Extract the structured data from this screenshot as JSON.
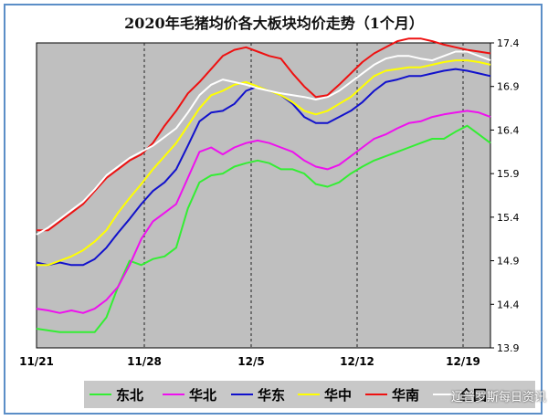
{
  "chart_data": {
    "type": "line",
    "title": "2020年毛猪均价各大板块均价走势（1个月）",
    "xlabel": "",
    "ylabel": "",
    "x_ticks": [
      "11/21",
      "11/28",
      "12/5",
      "12/12",
      "12/19"
    ],
    "ylim": [
      13.9,
      17.4
    ],
    "y_ticks": [
      "17.4",
      "16.9",
      "16.4",
      "15.9",
      "15.4",
      "14.9",
      "14.4",
      "13.9"
    ],
    "y_axis_position": "right",
    "grid": "vertical-dashed",
    "legend_position": "bottom",
    "series": [
      {
        "name": "东北",
        "color": "#33ee33",
        "values": [
          14.12,
          14.1,
          14.08,
          14.08,
          14.08,
          14.08,
          14.25,
          14.6,
          14.9,
          14.85,
          14.92,
          14.95,
          15.05,
          15.5,
          15.8,
          15.88,
          15.9,
          15.98,
          16.02,
          16.05,
          16.02,
          15.95,
          15.95,
          15.9,
          15.78,
          15.75,
          15.8,
          15.9,
          15.98,
          16.05,
          16.1,
          16.15,
          16.2,
          16.25,
          16.3,
          16.3,
          16.38,
          16.45,
          16.35,
          16.25
        ]
      },
      {
        "name": "华北",
        "color": "#ee11ee",
        "values": [
          14.35,
          14.33,
          14.3,
          14.33,
          14.3,
          14.35,
          14.45,
          14.6,
          14.85,
          15.15,
          15.35,
          15.45,
          15.55,
          15.85,
          16.15,
          16.2,
          16.12,
          16.2,
          16.25,
          16.28,
          16.25,
          16.2,
          16.15,
          16.05,
          15.98,
          15.95,
          16.0,
          16.1,
          16.2,
          16.3,
          16.35,
          16.42,
          16.48,
          16.5,
          16.55,
          16.58,
          16.6,
          16.62,
          16.6,
          16.55
        ]
      },
      {
        "name": "华东",
        "color": "#1111cc",
        "values": [
          14.88,
          14.85,
          14.88,
          14.85,
          14.85,
          14.92,
          15.05,
          15.22,
          15.38,
          15.55,
          15.7,
          15.8,
          15.95,
          16.22,
          16.5,
          16.6,
          16.62,
          16.7,
          16.85,
          16.9,
          16.85,
          16.8,
          16.7,
          16.55,
          16.48,
          16.48,
          16.55,
          16.62,
          16.72,
          16.85,
          16.95,
          16.98,
          17.02,
          17.02,
          17.05,
          17.08,
          17.1,
          17.08,
          17.05,
          17.02
        ]
      },
      {
        "name": "华中",
        "color": "#ffff00",
        "values": [
          14.85,
          14.85,
          14.9,
          14.95,
          15.02,
          15.12,
          15.25,
          15.45,
          15.62,
          15.78,
          15.95,
          16.1,
          16.25,
          16.45,
          16.65,
          16.8,
          16.85,
          16.92,
          16.95,
          16.9,
          16.85,
          16.8,
          16.72,
          16.62,
          16.58,
          16.62,
          16.7,
          16.78,
          16.9,
          17.02,
          17.08,
          17.1,
          17.12,
          17.12,
          17.15,
          17.18,
          17.2,
          17.2,
          17.18,
          17.15
        ]
      },
      {
        "name": "华南",
        "color": "#ee1111",
        "values": [
          15.25,
          15.25,
          15.35,
          15.45,
          15.55,
          15.7,
          15.85,
          15.95,
          16.05,
          16.12,
          16.25,
          16.45,
          16.62,
          16.82,
          16.95,
          17.1,
          17.25,
          17.32,
          17.35,
          17.3,
          17.25,
          17.22,
          17.05,
          16.9,
          16.78,
          16.8,
          16.92,
          17.05,
          17.18,
          17.28,
          17.35,
          17.42,
          17.45,
          17.45,
          17.42,
          17.38,
          17.35,
          17.32,
          17.3,
          17.28
        ]
      },
      {
        "name": "全国",
        "color": "#ffffff",
        "values": [
          15.2,
          15.28,
          15.38,
          15.48,
          15.58,
          15.72,
          15.88,
          15.98,
          16.08,
          16.15,
          16.22,
          16.32,
          16.42,
          16.6,
          16.8,
          16.92,
          16.98,
          16.95,
          16.92,
          16.88,
          16.85,
          16.82,
          16.8,
          16.78,
          16.75,
          16.78,
          16.85,
          16.95,
          17.05,
          17.15,
          17.22,
          17.25,
          17.25,
          17.22,
          17.2,
          17.25,
          17.3,
          17.3,
          17.25,
          17.2
        ]
      }
    ]
  },
  "watermark": "辽普罗斯每日资讯"
}
